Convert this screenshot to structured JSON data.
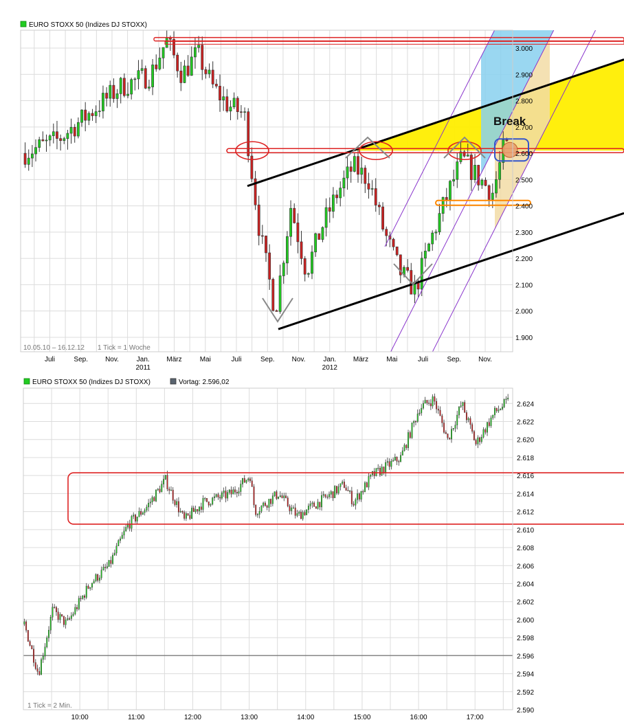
{
  "colors": {
    "up": "#22cc22",
    "down": "#cc2222",
    "grid": "#dcdcdc",
    "trendline": "#000000",
    "annotation_red": "#dd2222",
    "annotation_orange": "#ff8800",
    "annotation_blue": "#3355cc",
    "annotation_purple": "#8833cc",
    "fill_yellow": "#ffee00",
    "fill_lightblue": "#88d0ee",
    "fill_tan": "#f2dca6",
    "prev_close_line": "#555555"
  },
  "weekly_chart": {
    "legend_label": "EURO STOXX 50 (Indizes DJ STOXX)",
    "range_info": "10.05.10 – 16.12.12",
    "tick_info": "1 Tick = 1 Woche",
    "annotation_text": "Break"
  },
  "intraday_chart": {
    "legend_label": "EURO STOXX 50 (Indizes DJ STOXX)",
    "prev_close_label": "Vortag: 2.596,02",
    "tick_info": "1 Tick = 2 Min."
  },
  "chart_data": [
    {
      "type": "candlestick",
      "title": "EURO STOXX 50 (Indizes DJ STOXX)",
      "date_range": [
        "10.05.10",
        "16.12.12"
      ],
      "interval": "1 Woche",
      "y_ticks": [
        1900,
        2000,
        2100,
        2200,
        2300,
        2400,
        2500,
        2600,
        2700,
        2800,
        2900,
        3000
      ],
      "y_tick_labels": [
        "1.900",
        "2.000",
        "2.100",
        "2.200",
        "2.300",
        "2.400",
        "2.500",
        "2.600",
        "2.700",
        "2.800",
        "2.900",
        "3.000"
      ],
      "ylim": [
        1845,
        3068
      ],
      "x_tick_labels": [
        "Juli",
        "Sep.",
        "Nov.",
        "Jan.",
        "März",
        "Mai",
        "Juli",
        "Sep.",
        "Nov.",
        "Jan.",
        "März",
        "Mai",
        "Juli",
        "Sep.",
        "Nov."
      ],
      "year_labels": [
        "2011",
        "2012"
      ],
      "approx_close_path": [
        {
          "date": "2010-05",
          "close": 2600
        },
        {
          "date": "2010-07",
          "close": 2650
        },
        {
          "date": "2010-09",
          "close": 2750
        },
        {
          "date": "2010-11",
          "close": 2850
        },
        {
          "date": "2011-01",
          "close": 2900
        },
        {
          "date": "2011-02",
          "close": 3030
        },
        {
          "date": "2011-03",
          "close": 2900
        },
        {
          "date": "2011-04",
          "close": 2980
        },
        {
          "date": "2011-05",
          "close": 2850
        },
        {
          "date": "2011-06",
          "close": 2780
        },
        {
          "date": "2011-07",
          "close": 2750
        },
        {
          "date": "2011-08",
          "close": 2300
        },
        {
          "date": "2011-09",
          "close": 2000
        },
        {
          "date": "2011-10",
          "close": 2400
        },
        {
          "date": "2011-11",
          "close": 2150
        },
        {
          "date": "2011-12",
          "close": 2320
        },
        {
          "date": "2012-01",
          "close": 2450
        },
        {
          "date": "2012-02",
          "close": 2550
        },
        {
          "date": "2012-03",
          "close": 2500
        },
        {
          "date": "2012-04",
          "close": 2300
        },
        {
          "date": "2012-05",
          "close": 2150
        },
        {
          "date": "2012-06",
          "close": 2080
        },
        {
          "date": "2012-07",
          "close": 2270
        },
        {
          "date": "2012-08",
          "close": 2430
        },
        {
          "date": "2012-09",
          "close": 2580
        },
        {
          "date": "2012-10",
          "close": 2510
        },
        {
          "date": "2012-11",
          "close": 2450
        },
        {
          "date": "2012-12",
          "close": 2620
        }
      ],
      "annotations": {
        "resistance_levels": [
          2610,
          3035,
          3020
        ],
        "support_level": 2410,
        "upper_trend_from_to": [
          [
            2011.62,
            2490
          ],
          [
            2012.92,
            2800
          ]
        ],
        "lower_trend_from_to": [
          [
            2011.72,
            1930
          ],
          [
            2012.98,
            2230
          ]
        ],
        "label": "Break"
      }
    },
    {
      "type": "candlestick",
      "title": "EURO STOXX 50 (Indizes DJ STOXX)",
      "interval": "2 Min.",
      "previous_close": 2596.02,
      "y_ticks": [
        2590,
        2592,
        2594,
        2596,
        2598,
        2600,
        2602,
        2604,
        2606,
        2608,
        2610,
        2612,
        2614,
        2616,
        2618,
        2620,
        2622,
        2624
      ],
      "y_tick_labels": [
        "2.590",
        "2.592",
        "2.594",
        "2.596",
        "2.598",
        "2.600",
        "2.602",
        "2.604",
        "2.606",
        "2.608",
        "2.610",
        "2.612",
        "2.614",
        "2.616",
        "2.618",
        "2.620",
        "2.622",
        "2.624"
      ],
      "ylim": [
        2590,
        2625.7
      ],
      "x_tick_labels": [
        "10:00",
        "11:00",
        "12:00",
        "13:00",
        "14:00",
        "15:00",
        "16:00",
        "17:00"
      ],
      "xlim": [
        "09:00",
        "17:40"
      ],
      "approx_price_path": [
        {
          "time": "09:00",
          "price": 2599.5
        },
        {
          "time": "09:15",
          "price": 2594.0
        },
        {
          "time": "09:30",
          "price": 2601.0
        },
        {
          "time": "09:45",
          "price": 2599.5
        },
        {
          "time": "10:10",
          "price": 2604.0
        },
        {
          "time": "10:30",
          "price": 2606.0
        },
        {
          "time": "10:50",
          "price": 2610.5
        },
        {
          "time": "11:10",
          "price": 2612.5
        },
        {
          "time": "11:30",
          "price": 2615.5
        },
        {
          "time": "11:50",
          "price": 2611.0
        },
        {
          "time": "12:10",
          "price": 2613.0
        },
        {
          "time": "12:40",
          "price": 2614.0
        },
        {
          "time": "13:00",
          "price": 2616.0
        },
        {
          "time": "13:05",
          "price": 2612.0
        },
        {
          "time": "13:30",
          "price": 2614.0
        },
        {
          "time": "13:50",
          "price": 2611.5
        },
        {
          "time": "14:20",
          "price": 2613.5
        },
        {
          "time": "14:40",
          "price": 2615.0
        },
        {
          "time": "14:50",
          "price": 2613.0
        },
        {
          "time": "15:10",
          "price": 2616.0
        },
        {
          "time": "15:40",
          "price": 2618.0
        },
        {
          "time": "16:00",
          "price": 2623.5
        },
        {
          "time": "16:15",
          "price": 2624.5
        },
        {
          "time": "16:30",
          "price": 2620.0
        },
        {
          "time": "16:45",
          "price": 2624.0
        },
        {
          "time": "17:00",
          "price": 2619.5
        },
        {
          "time": "17:20",
          "price": 2623.0
        },
        {
          "time": "17:35",
          "price": 2624.3
        }
      ],
      "annotations": {
        "highlight_band": [
          2610.6,
          2616.3
        ]
      }
    }
  ]
}
